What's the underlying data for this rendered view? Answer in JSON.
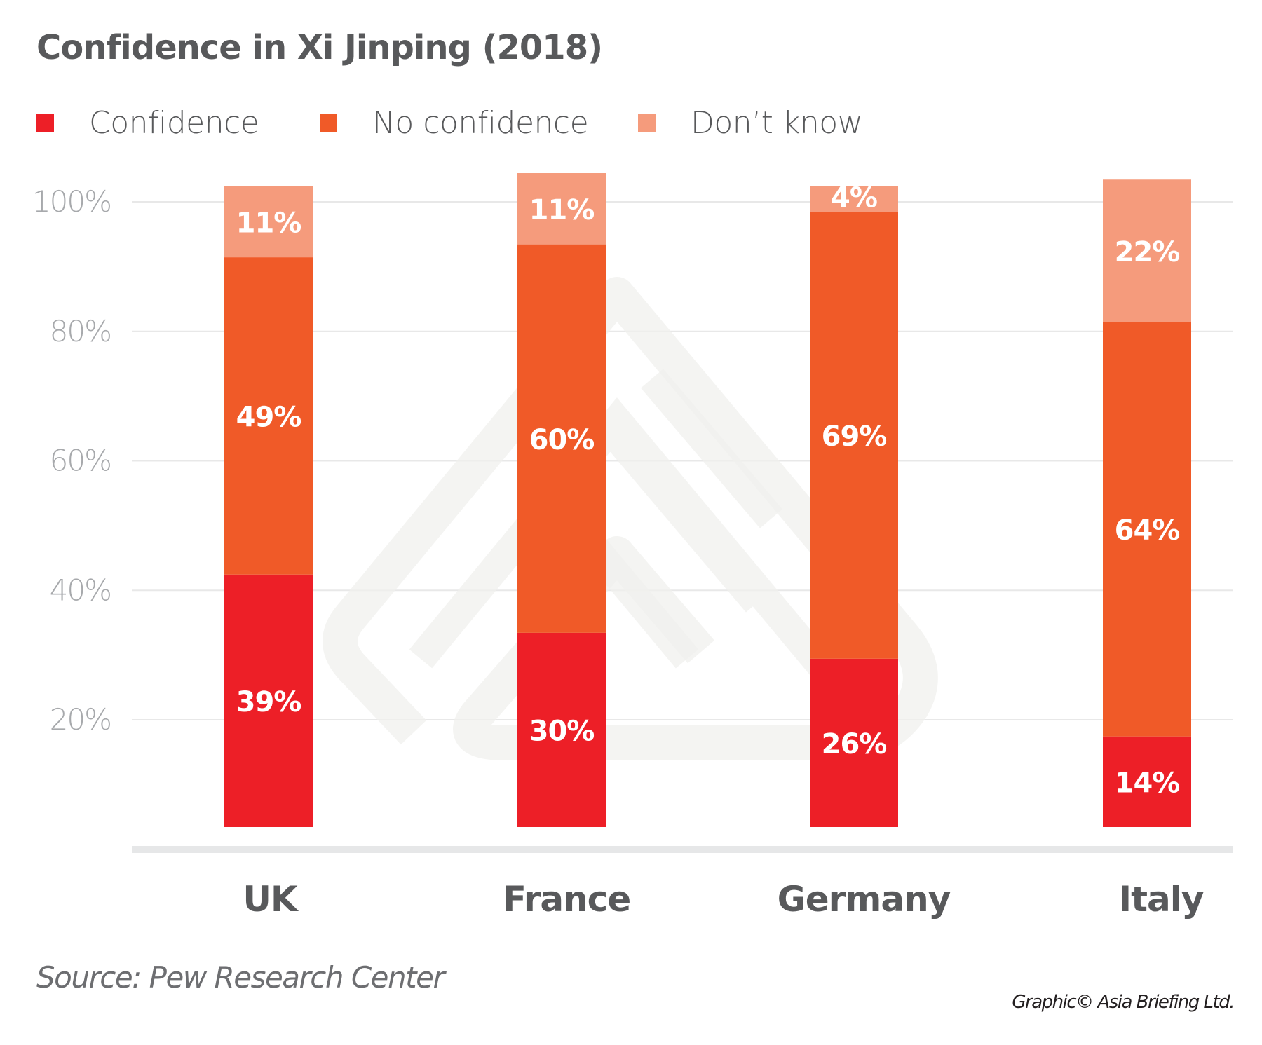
{
  "title": "Confidence in Xi Jinping (2018)",
  "legend": [
    {
      "label": "Confidence",
      "color": "#ed1f27"
    },
    {
      "label": "No confidence",
      "color": "#f05a28"
    },
    {
      "label": "Don’t know",
      "color": "#f59b7c"
    }
  ],
  "source": "Source: Pew Research Center",
  "credit": "Graphic© Asia Briefing Ltd.",
  "chart_data": {
    "type": "bar",
    "stacked": true,
    "title": "Confidence in Xi Jinping (2018)",
    "xlabel": "",
    "ylabel": "",
    "categories": [
      "UK",
      "France",
      "Germany",
      "Italy"
    ],
    "series": [
      {
        "name": "Confidence",
        "color": "#ed1f27",
        "values": [
          39,
          30,
          26,
          14
        ],
        "labels": [
          "39%",
          "30%",
          "26%",
          "14%"
        ]
      },
      {
        "name": "No confidence",
        "color": "#f05a28",
        "values": [
          49,
          60,
          69,
          64
        ],
        "labels": [
          "49%",
          "60%",
          "69%",
          "64%"
        ]
      },
      {
        "name": "Don’t know",
        "color": "#f59b7c",
        "values": [
          11,
          11,
          4,
          22
        ],
        "labels": [
          "11%",
          "11%",
          "4%",
          "22%"
        ]
      }
    ],
    "yticks": [
      20,
      40,
      60,
      80,
      100
    ],
    "ytick_labels": [
      "20%",
      "40%",
      "60%",
      "80%",
      "100%"
    ],
    "ylim": [
      0,
      100
    ],
    "grid": true,
    "legend_position": "top-left",
    "watermark": "Asia Briefing logo"
  }
}
